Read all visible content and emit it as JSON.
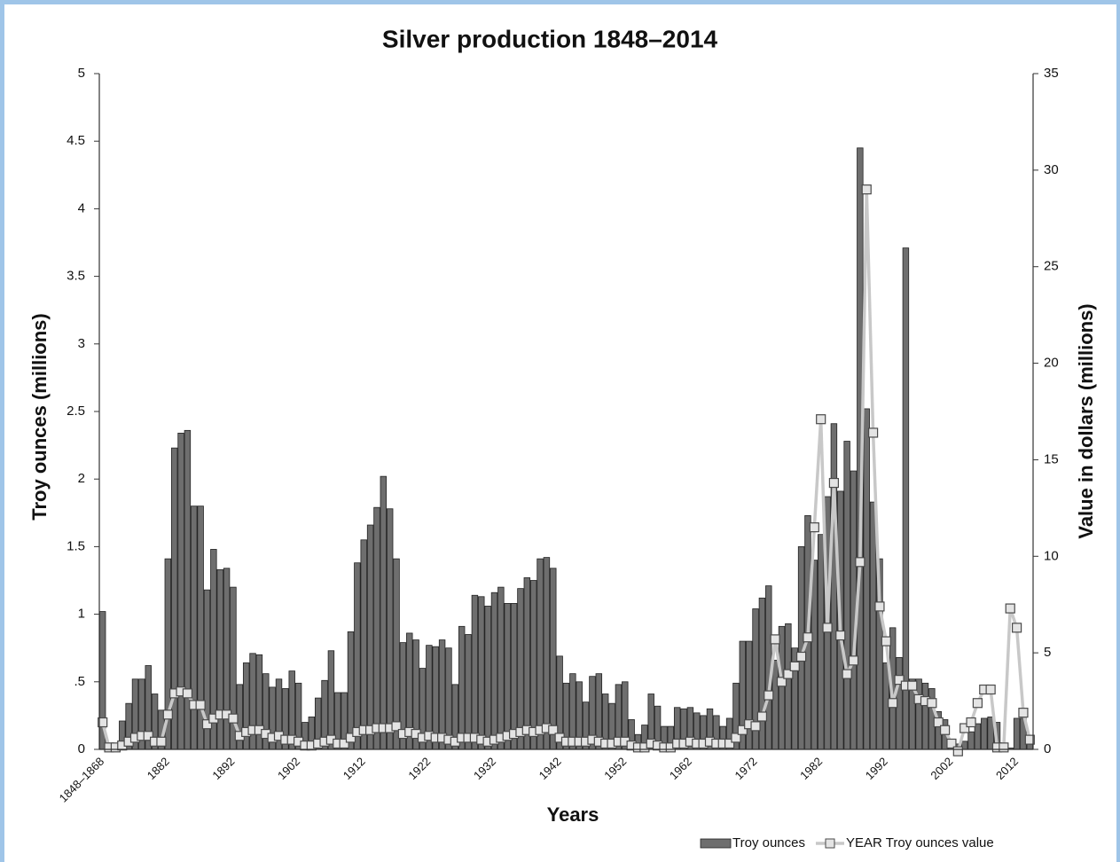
{
  "chart_data": {
    "type": "bar",
    "title": "Silver production 1848–2014",
    "x_label": "Years",
    "y_label": "Troy ounces (millions)",
    "y2_label": "Value in dollars (millions)",
    "legend": "bottom-right",
    "categories": [
      "1848–1868",
      null,
      null,
      null,
      null,
      null,
      null,
      null,
      null,
      null,
      "1882",
      null,
      null,
      null,
      null,
      null,
      null,
      null,
      null,
      null,
      "1892",
      null,
      null,
      null,
      null,
      null,
      null,
      null,
      null,
      null,
      "1902",
      null,
      null,
      null,
      null,
      null,
      null,
      null,
      null,
      null,
      "1912",
      null,
      null,
      null,
      null,
      null,
      null,
      null,
      null,
      null,
      "1922",
      null,
      null,
      null,
      null,
      null,
      null,
      null,
      null,
      null,
      "1932",
      null,
      null,
      null,
      null,
      null,
      null,
      null,
      null,
      null,
      "1942",
      null,
      null,
      null,
      null,
      null,
      null,
      null,
      null,
      null,
      "1952",
      null,
      null,
      null,
      null,
      null,
      null,
      null,
      null,
      null,
      "1962",
      null,
      null,
      null,
      null,
      null,
      null,
      null,
      null,
      null,
      "1972",
      null,
      null,
      null,
      null,
      null,
      null,
      null,
      null,
      null,
      "1982",
      null,
      null,
      null,
      null,
      null,
      null,
      null,
      null,
      null,
      "1992",
      null,
      null,
      null,
      null,
      null,
      null,
      null,
      null,
      null,
      "2002",
      null,
      null,
      null,
      null,
      null,
      null,
      null,
      null,
      null,
      "2012",
      null,
      null
    ],
    "series": [
      {
        "name": "Troy ounces",
        "type": "bar",
        "color": "#6e6e6e",
        "values": [
          1.02,
          0.02,
          0.02,
          0.21,
          0.34,
          0.52,
          0.52,
          0.62,
          0.41,
          0.29,
          1.41,
          2.23,
          2.34,
          2.36,
          1.8,
          1.8,
          1.18,
          1.48,
          1.33,
          1.34,
          1.2,
          0.48,
          0.64,
          0.71,
          0.7,
          0.56,
          0.46,
          0.52,
          0.45,
          0.58,
          0.49,
          0.2,
          0.24,
          0.38,
          0.51,
          0.73,
          0.42,
          0.42,
          0.87,
          1.38,
          1.55,
          1.66,
          1.79,
          2.02,
          1.78,
          1.41,
          0.79,
          0.86,
          0.81,
          0.6,
          0.77,
          0.76,
          0.81,
          0.75,
          0.48,
          0.91,
          0.85,
          1.14,
          1.13,
          1.06,
          1.16,
          1.2,
          1.08,
          1.08,
          1.19,
          1.27,
          1.25,
          1.41,
          1.42,
          1.34,
          0.69,
          0.49,
          0.56,
          0.5,
          0.35,
          0.54,
          0.56,
          0.41,
          0.34,
          0.48,
          0.5,
          0.22,
          0.11,
          0.18,
          0.41,
          0.32,
          0.17,
          0.17,
          0.31,
          0.3,
          0.31,
          0.27,
          0.25,
          0.3,
          0.25,
          0.17,
          0.23,
          0.49,
          0.8,
          0.8,
          1.04,
          1.12,
          1.21,
          0.66,
          0.91,
          0.93,
          0.75,
          1.5,
          1.73,
          1.4,
          1.59,
          1.87,
          2.41,
          1.91,
          2.28,
          2.06,
          4.45,
          2.52,
          1.83,
          1.41,
          0.64,
          0.9,
          0.68,
          3.71,
          0.52,
          0.52,
          0.49,
          0.45,
          0.28,
          0.22,
          0.05,
          0.04,
          0.06,
          0.13,
          0.19,
          0.23,
          0.24,
          0.2,
          0.01,
          0.01,
          0.23,
          0.23,
          0.05
        ]
      },
      {
        "name": "YEAR Troy ounces value",
        "type": "line",
        "axis": "y2",
        "color": "#c8c8c8",
        "values": [
          1.4,
          0.1,
          0.1,
          0.2,
          0.4,
          0.6,
          0.7,
          0.7,
          0.4,
          0.4,
          1.8,
          2.9,
          3.0,
          2.9,
          2.3,
          2.3,
          1.3,
          1.6,
          1.8,
          1.8,
          1.6,
          0.7,
          0.9,
          1.0,
          1.0,
          0.8,
          0.6,
          0.7,
          0.5,
          0.5,
          0.4,
          0.2,
          0.2,
          0.3,
          0.4,
          0.5,
          0.3,
          0.3,
          0.6,
          0.9,
          1.0,
          1.0,
          1.1,
          1.1,
          1.1,
          1.2,
          0.8,
          0.9,
          0.8,
          0.6,
          0.7,
          0.6,
          0.6,
          0.5,
          0.4,
          0.6,
          0.6,
          0.6,
          0.5,
          0.4,
          0.5,
          0.6,
          0.7,
          0.8,
          0.9,
          1.0,
          0.9,
          1.0,
          1.1,
          1.0,
          0.6,
          0.4,
          0.4,
          0.4,
          0.4,
          0.5,
          0.4,
          0.3,
          0.3,
          0.4,
          0.4,
          0.2,
          0.1,
          0.1,
          0.3,
          0.2,
          0.1,
          0.1,
          0.3,
          0.3,
          0.4,
          0.3,
          0.3,
          0.4,
          0.3,
          0.3,
          0.3,
          0.6,
          1.0,
          1.3,
          1.2,
          1.7,
          2.8,
          5.7,
          3.5,
          3.9,
          4.3,
          4.8,
          5.8,
          11.5,
          17.1,
          6.3,
          13.8,
          5.9,
          3.9,
          4.6,
          9.7,
          29.0,
          16.4,
          7.4,
          5.6,
          2.4,
          3.6,
          3.3,
          3.3,
          2.6,
          2.5,
          2.4,
          1.4,
          1.0,
          0.3,
          -0.1,
          1.1,
          1.4,
          2.4,
          3.1,
          3.1,
          0.1,
          0.1,
          7.3,
          6.3,
          1.9,
          0.5
        ]
      }
    ],
    "ylim": [
      0,
      5
    ],
    "yticks": [
      0,
      {
        "value": 0.5,
        "label": ".5"
      },
      1,
      1.5,
      2,
      2.5,
      3,
      3.5,
      4,
      4.5,
      5
    ],
    "y2lim": [
      0,
      35
    ],
    "y2ticks": [
      0,
      5,
      10,
      15,
      20,
      25,
      30,
      35
    ]
  }
}
